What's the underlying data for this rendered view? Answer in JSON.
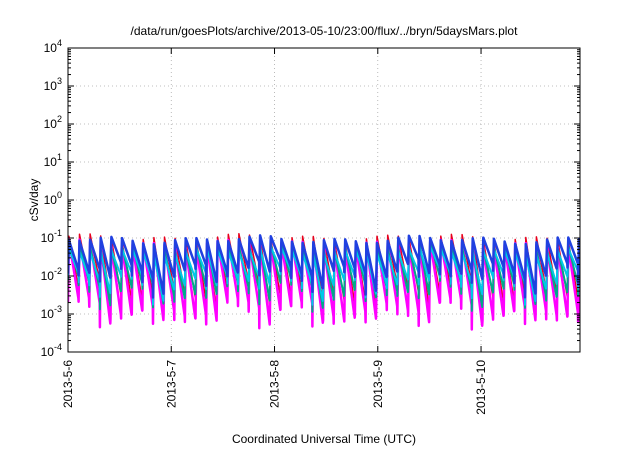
{
  "chart_data": {
    "type": "line",
    "title": "/data/run/goesPlots/archive/2013-05-10/23:00/flux/../bryn/5daysMars.plot",
    "xlabel": "Coordinated Universal Time (UTC)",
    "ylabel": "cSv/day",
    "y_scale": "log",
    "ylim": [
      0.0001,
      10000
    ],
    "xlim": [
      "2013-05-06T00:00",
      "2013-05-10T23:00"
    ],
    "grid": true,
    "x_ticks": [
      "2013-5-6",
      "2013-5-7",
      "2013-5-8",
      "2013-5-9",
      "2013-5-10"
    ],
    "y_ticks": [
      {
        "base": "10",
        "exp": "-4"
      },
      {
        "base": "10",
        "exp": "-3"
      },
      {
        "base": "10",
        "exp": "-2"
      },
      {
        "base": "10",
        "exp": "-1"
      },
      {
        "base": "10",
        "exp": "0"
      },
      {
        "base": "10",
        "exp": "1"
      },
      {
        "base": "10",
        "exp": "2"
      },
      {
        "base": "10",
        "exp": "3"
      },
      {
        "base": "10",
        "exp": "4"
      }
    ],
    "x_interval_hours": 119,
    "cycle_hours": 2.47,
    "series": [
      {
        "color": "#e8001c",
        "peak": 0.1,
        "trough": 0.003,
        "stroke": 1.5
      },
      {
        "color": "#ff00ff",
        "peak": 0.07,
        "trough": 0.0011,
        "stroke": 2.5
      },
      {
        "color": "#00aa88",
        "peak": 0.06,
        "trough": 0.004,
        "stroke": 2
      },
      {
        "color": "#00c8e8",
        "peak": 0.045,
        "trough": 0.007,
        "stroke": 2
      },
      {
        "color": "#2040e0",
        "peak": 0.09,
        "trough": 0.012,
        "stroke": 2.5
      }
    ]
  }
}
